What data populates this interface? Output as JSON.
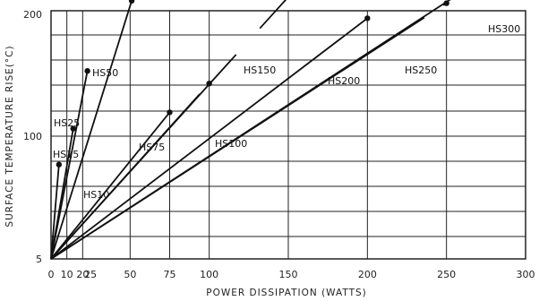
{
  "chart_data": {
    "type": "line",
    "xlabel": "POWER DISSIPATION (WATTS)",
    "ylabel": "SURFACE TEMPERATURE RISE(°C)",
    "xlim": [
      0,
      300
    ],
    "x_ticks": [
      0,
      10,
      20,
      25,
      50,
      75,
      100,
      150,
      200,
      250,
      300
    ],
    "y_ticks": [
      5,
      100,
      200
    ],
    "grid": true,
    "origin": [
      0,
      5
    ],
    "colors": {
      "line": "#111111",
      "grid": "#222222",
      "background": "#ffffff"
    },
    "series": [
      {
        "name": "HS10",
        "x": [
          0,
          5
        ],
        "y": [
          5,
          78
        ]
      },
      {
        "name": "HS15",
        "x": [
          0,
          14
        ],
        "y": [
          5,
          106
        ]
      },
      {
        "name": "HS25",
        "x": [
          0,
          23
        ],
        "y": [
          5,
          152
        ]
      },
      {
        "name": "HS50",
        "x": [
          0,
          51
        ],
        "y": [
          5,
          208
        ]
      },
      {
        "name": "HS75",
        "x": [
          0,
          75
        ],
        "y": [
          5,
          119
        ]
      },
      {
        "name": "HS100",
        "x": [
          0,
          100
        ],
        "y": [
          5,
          142
        ]
      },
      {
        "name": "HS150",
        "x": [
          0,
          150
        ],
        "y": [
          5,
          211
        ]
      },
      {
        "name": "HS200",
        "x": [
          0,
          200
        ],
        "y": [
          5,
          194
        ]
      },
      {
        "name": "HS250",
        "x": [
          0,
          250
        ],
        "y": [
          5,
          206
        ]
      },
      {
        "name": "HS300",
        "x": [
          0,
          300
        ],
        "y": [
          5,
          248
        ]
      }
    ],
    "labels": {
      "HS10": "HS10",
      "HS15": "HS15",
      "HS25": "HS25",
      "HS50": "HS50",
      "HS75": "HS75",
      "HS100": "HS100",
      "HS150": "HS150",
      "HS200": "HS200",
      "HS250": "HS250",
      "HS300": "HS300"
    }
  }
}
